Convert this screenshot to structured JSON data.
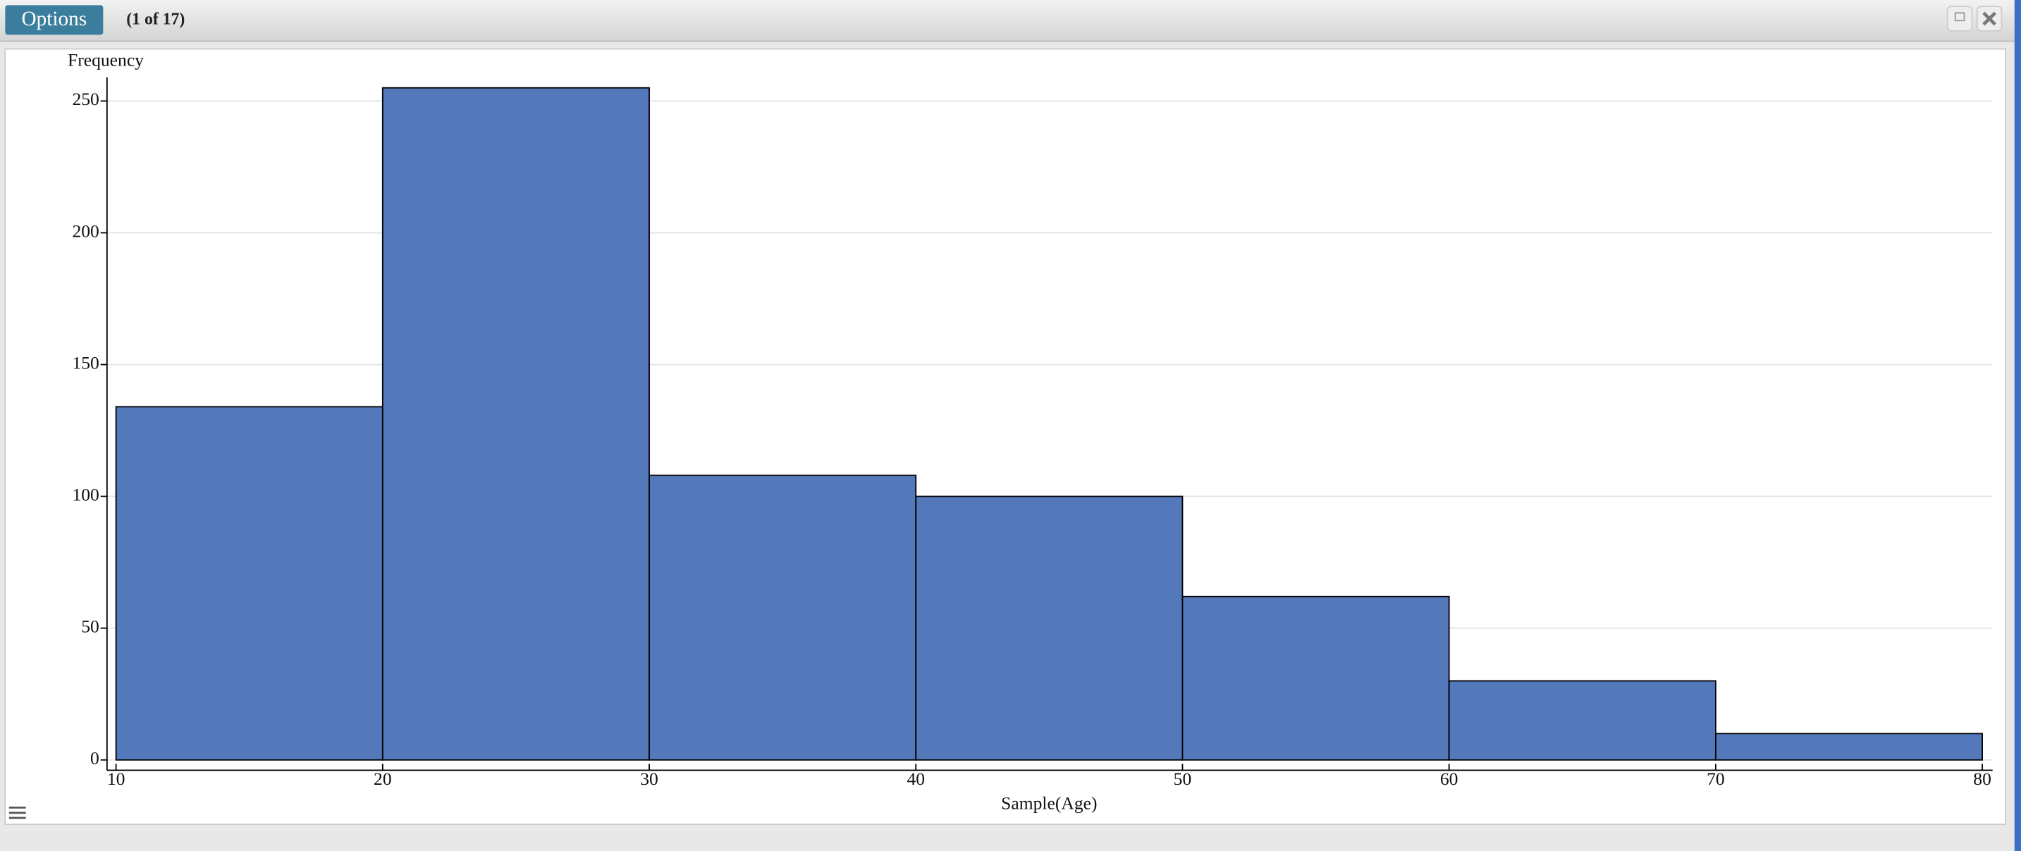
{
  "ui": {
    "button": "Options",
    "counter": "(1 of 17)"
  },
  "chart_data": {
    "type": "histogram",
    "ylabel": "Frequency",
    "xlabel": "Sample(Age)",
    "bins": [
      10,
      20,
      30,
      40,
      50,
      60,
      70,
      80
    ],
    "values": [
      134,
      255,
      108,
      100,
      62,
      30,
      10
    ],
    "color": "#5479bb",
    "xlim": [
      10,
      80
    ],
    "xticks": [
      10,
      20,
      30,
      40,
      50,
      60,
      70,
      80
    ],
    "ylim": [
      0,
      259
    ],
    "yticks": [
      0,
      50,
      100,
      150,
      200,
      250
    ],
    "grid": true
  }
}
